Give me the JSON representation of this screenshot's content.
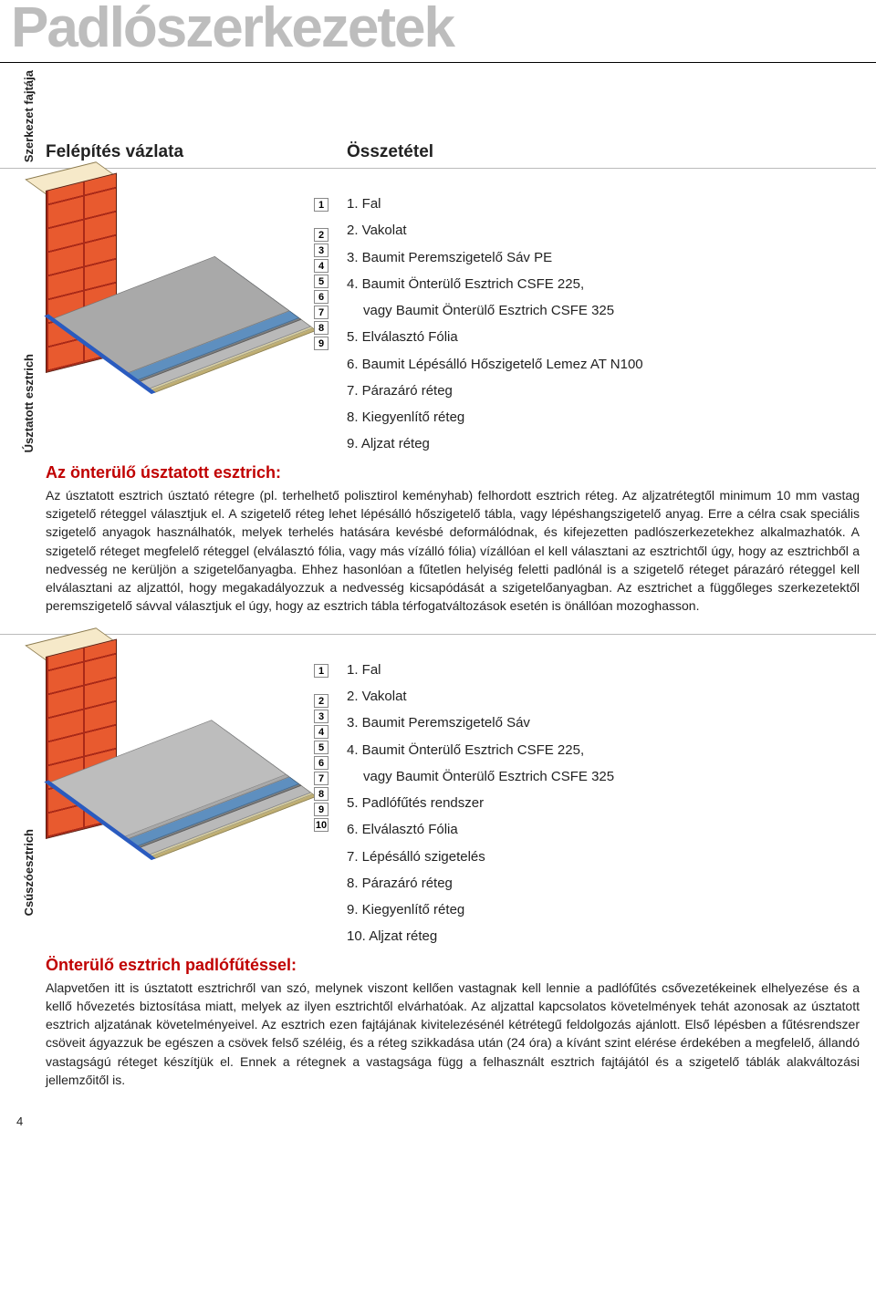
{
  "page_title": "Padlószerkezetek",
  "header": {
    "vertical_label": "Szerkezet fajtája",
    "col1": "Felépítés vázlata",
    "col2": "Összetétel"
  },
  "section1": {
    "vertical_label": "Úsztatott esztrich",
    "composition": [
      "1. Fal",
      "2. Vakolat",
      "3. Baumit Peremszigetelő Sáv PE",
      "4. Baumit Önterülő Esztrich CSFE 225,",
      "vagy Baumit Önterülő Esztrich CSFE 325",
      "5. Elválasztó Fólia",
      "6. Baumit Lépésálló Hőszigetelő Lemez AT N100",
      "7. Párazáró réteg",
      "8. Kiegyenlítő réteg",
      "9. Aljzat réteg"
    ],
    "heading": "Az önterülő úsztatott esztrich:",
    "body": "Az úsztatott esztrich úsztató rétegre (pl. terhelhető polisztirol keményhab) felhordott esztrich réteg. Az aljzatrétegtől minimum 10 mm vastag szigetelő réteggel választjuk el. A szigetelő réteg lehet lépésálló hőszigetelő tábla, vagy lépéshangszigetelő anyag. Erre a célra csak speciális szigetelő anyagok használhatók, melyek terhelés hatására kevésbé deformálódnak, és kifejezetten padlószerkezetekhez alkalmazhatók. A szigetelő réteget megfelelő réteggel (elválasztó fólia, vagy más vízálló fólia) vízállóan el kell választani az esztrichtől úgy, hogy az esztrichből a nedvesség ne kerüljön a szigetelőanyagba. Ehhez hasonlóan a fűtetlen helyiség feletti padlónál is a szigetelő réteget párazáró réteggel kell elválasztani az aljzattól, hogy megakadályozzuk a nedvesség kicsapódását a szigetelőanyagban. Az esztrichet a függőleges szerkezetektől peremszigetelő sávval választjuk el úgy, hogy az esztrich tábla térfogatváltozások esetén is önállóan mozoghasson.",
    "diagram_numbers": [
      "1",
      "",
      "2",
      "3",
      "4",
      "5",
      "6",
      "7",
      "8",
      "9"
    ]
  },
  "section2": {
    "vertical_label": "Csúszóesztrich",
    "composition": [
      "1. Fal",
      "2. Vakolat",
      "3. Baumit Peremszigetelő Sáv",
      "4. Baumit Önterülő Esztrich CSFE 225,",
      "vagy Baumit Önterülő Esztrich CSFE 325",
      "5. Padlófűtés rendszer",
      "6. Elválasztó Fólia",
      "7. Lépésálló szigetelés",
      "8. Párazáró réteg",
      "9. Kiegyenlítő réteg",
      "10. Aljzat réteg"
    ],
    "heading": "Önterülő esztrich padlófűtéssel:",
    "body": "Alapvetően itt is úsztatott esztrichről van szó, melynek viszont kellően vastagnak kell lennie a padlófűtés csővezetékeinek elhelyezése és a kellő hővezetés biztosítása miatt, melyek az ilyen esztrichtől elvárhatóak. Az aljzattal kapcsolatos követelmények tehát azonosak az úsztatott esztrich aljzatának követelményeivel. Az esztrich ezen fajtájának kivitelezésénél kétrétegű feldolgozás ajánlott. Első lépésben a fűtésrendszer csöveit ágyazzuk be egészen a csövek felső széléig, és a réteg szikkadása után (24 óra) a kívánt szint elérése érdekében a megfelelő, állandó vastagságú réteget készítjük el. Ennek a rétegnek a vastagsága függ a felhasznált esztrich fajtájától és a szigetelő táblák alakváltozási jellemzőitől is.",
    "diagram_numbers": [
      "1",
      "",
      "2",
      "3",
      "4",
      "5",
      "6",
      "7",
      "8",
      "9",
      "10"
    ]
  },
  "page_number": "4",
  "colors": {
    "title_gray": "#bdbdbd",
    "heading_red": "#c00000",
    "brick": "#e85a2f",
    "brick_line": "#aa2a18",
    "perim_blue": "#2a5bbf",
    "foil_blue": "#5e8fbf",
    "insul_gray": "#7d7d7d",
    "screed_gray": "#a9a9a9",
    "base_tan": "#bfae73"
  }
}
